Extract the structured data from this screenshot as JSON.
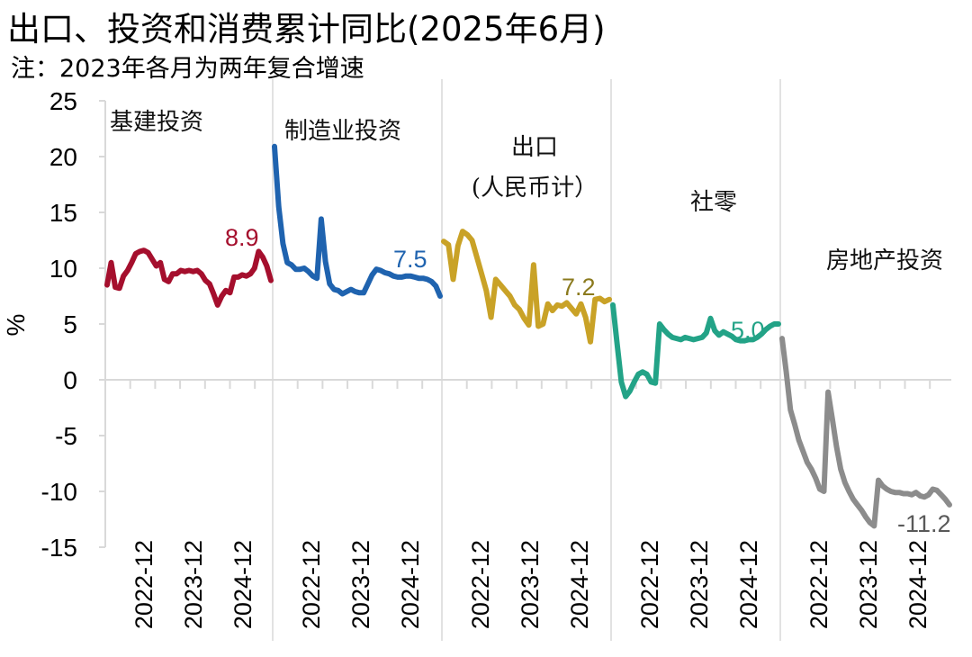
{
  "title": "出口、投资和消费累计同比(2025年6月)",
  "subtitle": "注：2023年各月为两年复合增速",
  "chart_data": {
    "type": "line",
    "title": "出口、投资和消费累计同比(2025年6月)",
    "subtitle": "注：2023年各月为两年复合增速",
    "ylabel": "%",
    "xlabel": "",
    "ylim": [
      -15,
      25
    ],
    "yticks": [
      25,
      20,
      15,
      10,
      5,
      0,
      -5,
      -10,
      -15
    ],
    "xtick_labels_per_panel": [
      "2022-12",
      "2023-12",
      "2024-12"
    ],
    "grid": false,
    "legend": "none (panel labels)",
    "panels": [
      {
        "name": "基建投资",
        "color": "#A50F2D",
        "last_label": "8.9",
        "values": [
          8.5,
          10.5,
          8.3,
          8.2,
          9.3,
          9.8,
          10.5,
          11.3,
          11.5,
          11.6,
          11.4,
          10.8,
          10.2,
          10.5,
          9.0,
          8.8,
          9.5,
          9.5,
          9.8,
          9.7,
          9.8,
          9.7,
          9.8,
          9.5,
          8.9,
          8.6,
          7.7,
          6.7,
          7.5,
          8.0,
          7.8,
          9.2,
          9.2,
          9.4,
          9.3,
          9.5,
          10.0,
          11.5,
          11.0,
          10.2,
          8.9
        ]
      },
      {
        "name": "制造业投资",
        "color": "#1F63AF",
        "last_label": "7.5",
        "values": [
          20.9,
          15.5,
          12.2,
          10.5,
          10.3,
          9.9,
          9.9,
          10.0,
          9.7,
          9.3,
          9.1,
          14.4,
          10.6,
          8.6,
          8.1,
          8.0,
          7.7,
          7.9,
          8.1,
          7.9,
          7.8,
          7.8,
          8.6,
          9.4,
          9.9,
          9.8,
          9.6,
          9.5,
          9.3,
          9.2,
          9.2,
          9.3,
          9.3,
          9.2,
          9.1,
          9.1,
          9.0,
          8.8,
          8.4,
          7.5
        ]
      },
      {
        "name": "出口(人民币计)",
        "color": "#C9A227",
        "last_label": "7.2",
        "values": [
          12.4,
          12.1,
          9.0,
          12.0,
          13.3,
          13.0,
          12.5,
          11.0,
          9.5,
          8.0,
          5.6,
          9.0,
          8.5,
          8.0,
          7.5,
          6.7,
          6.3,
          5.5,
          4.9,
          10.3,
          4.8,
          5.0,
          6.8,
          6.2,
          6.7,
          6.6,
          6.9,
          6.4,
          5.9,
          6.8,
          5.6,
          3.4,
          7.2,
          7.3,
          7.0,
          7.2
        ]
      },
      {
        "name": "社零",
        "color": "#23A387",
        "last_label": "5.0",
        "values": [
          6.7,
          3.2,
          -0.2,
          -1.5,
          -1.0,
          -0.2,
          0.5,
          0.7,
          0.5,
          -0.2,
          -0.3,
          5.0,
          4.5,
          4.1,
          3.8,
          3.7,
          3.6,
          3.8,
          3.7,
          3.6,
          3.7,
          3.8,
          4.2,
          5.5,
          4.4,
          4.0,
          4.3,
          4.1,
          3.9,
          3.6,
          3.5,
          3.5,
          3.6,
          3.6,
          3.8,
          4.1,
          4.5,
          4.8,
          5.0,
          5.0
        ]
      },
      {
        "name": "房地产投资",
        "color": "#8C8C8C",
        "last_label": "-11.2",
        "values": [
          3.7,
          0.7,
          -2.7,
          -4.0,
          -5.4,
          -6.4,
          -7.4,
          -8.0,
          -8.8,
          -9.8,
          -10.0,
          -1.1,
          -3.5,
          -6.0,
          -8.0,
          -9.2,
          -10.0,
          -10.7,
          -11.2,
          -11.7,
          -12.3,
          -12.8,
          -13.1,
          -9.0,
          -9.5,
          -9.8,
          -10.0,
          -10.1,
          -10.1,
          -10.2,
          -10.2,
          -10.3,
          -10.1,
          -10.4,
          -10.5,
          -10.3,
          -9.8,
          -9.9,
          -10.3,
          -10.7,
          -11.2
        ]
      }
    ]
  },
  "axis": {
    "y_label": "%",
    "y_ticks": [
      "25",
      "20",
      "15",
      "10",
      "5",
      "0",
      "-5",
      "-10",
      "-15"
    ]
  },
  "panels": [
    {
      "label_lines": [
        "基建投资"
      ],
      "value_label": "8.9"
    },
    {
      "label_lines": [
        "制造业投资"
      ],
      "value_label": "7.5"
    },
    {
      "label_lines": [
        "出口",
        "(人民币计）"
      ],
      "value_label": "7.2"
    },
    {
      "label_lines": [
        "社零"
      ],
      "value_label": "5.0"
    },
    {
      "label_lines": [
        "房地产投资"
      ],
      "value_label": "-11.2"
    }
  ],
  "x_ticks": [
    "2022-12",
    "2023-12",
    "2024-12"
  ]
}
